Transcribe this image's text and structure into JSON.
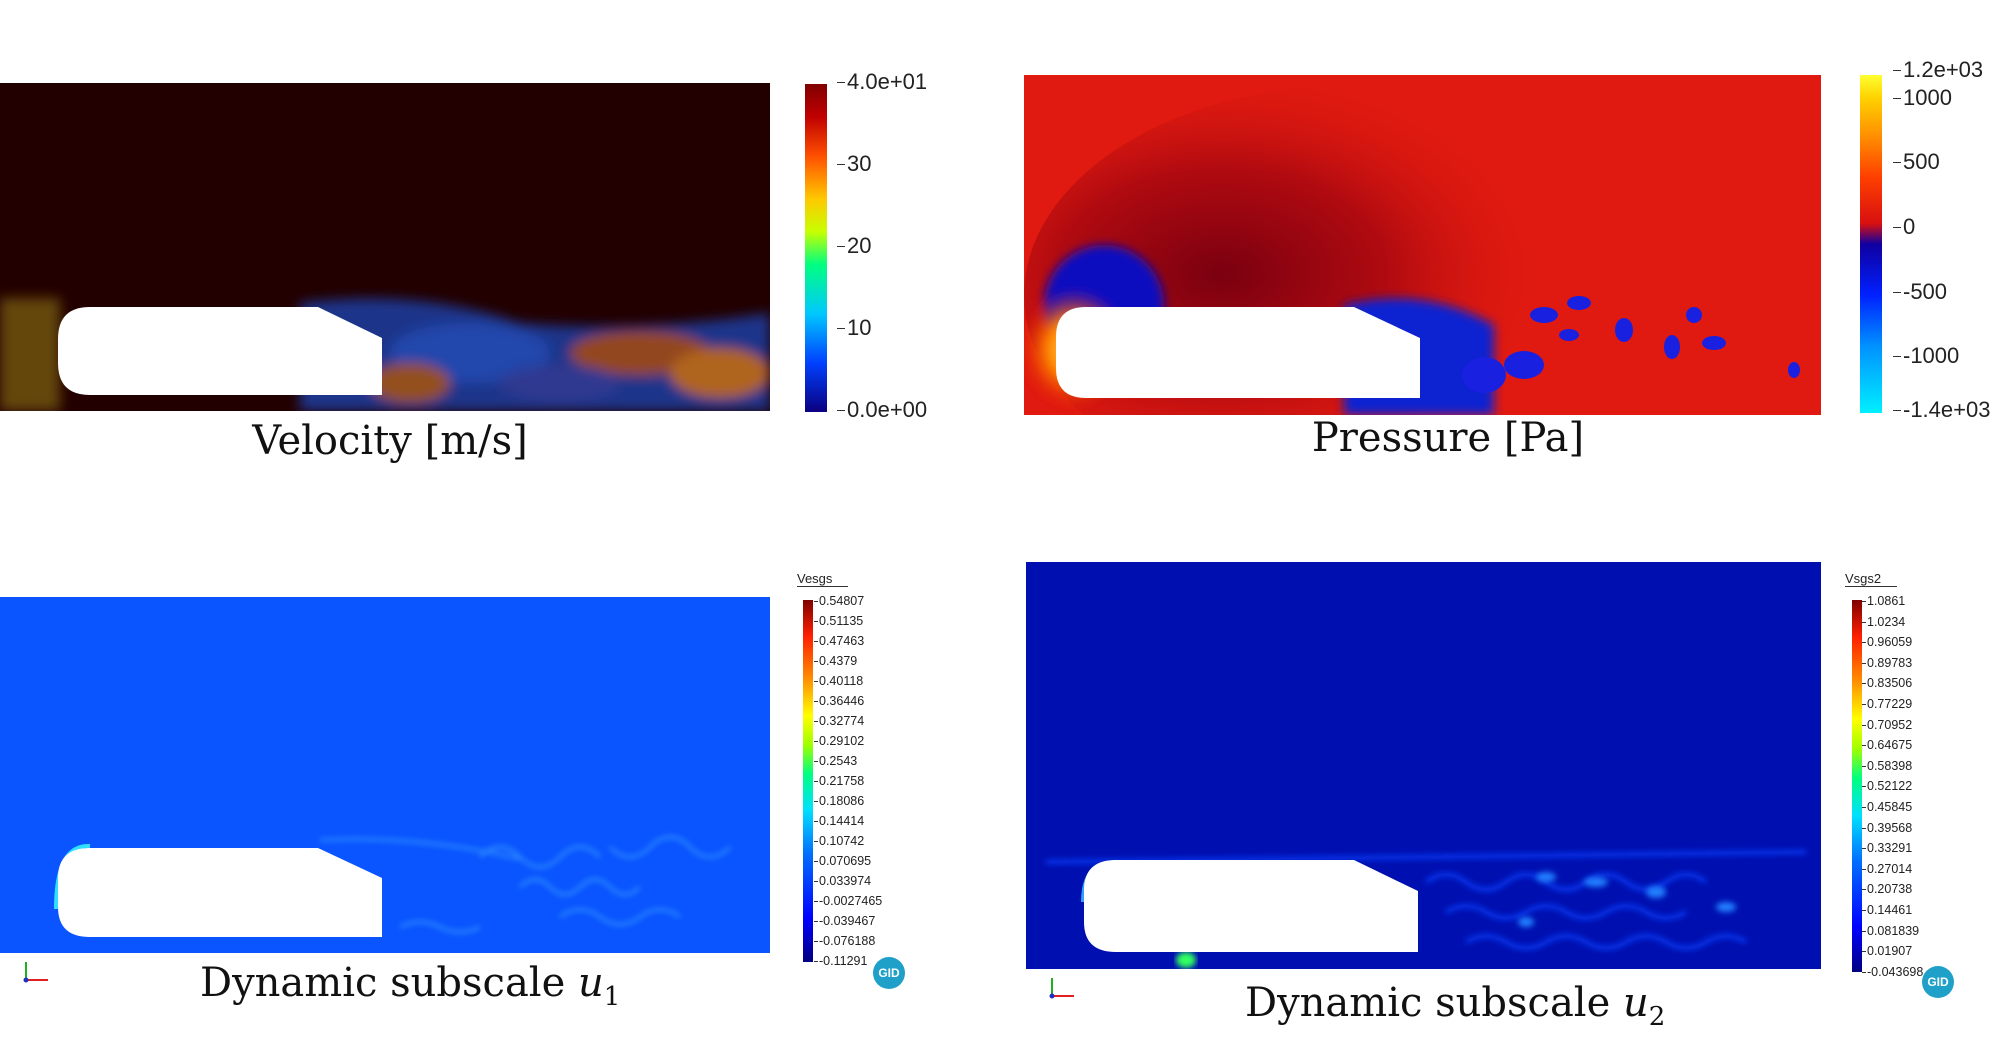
{
  "panels": [
    {
      "id": "velocity",
      "caption": "Velocity [m/s]",
      "colormap": [
        "#0b0080",
        "#0040ff",
        "#00c8ff",
        "#00ff80",
        "#c8ff00",
        "#ffc800",
        "#ff5000",
        "#c00000",
        "#800000"
      ],
      "background": "#230000",
      "ticks": [
        "4.0e+01",
        "30",
        "20",
        "10",
        "0.0e+00"
      ]
    },
    {
      "id": "pressure",
      "caption": "Pressure [Pa]",
      "colormap": [
        "#00f0ff",
        "#0090ff",
        "#0020ff",
        "#1000a0",
        "#d81010",
        "#ff4000",
        "#ff9000",
        "#ffd000",
        "#ffff30"
      ],
      "background": "#e01a10",
      "ticks": [
        "1.2e+03",
        "1000",
        "500",
        "0",
        "-500",
        "-1000",
        "-1.4e+03"
      ]
    },
    {
      "id": "subscale1",
      "caption_prefix": "Dynamic subscale ",
      "caption_var": "u",
      "caption_sub": "1",
      "legend_title": "Vesgs",
      "colormap": [
        "#000080",
        "#0000ff",
        "#0070ff",
        "#00e0ff",
        "#00ff80",
        "#a0ff00",
        "#ffff00",
        "#ff9000",
        "#ff2000",
        "#800000"
      ],
      "background": "#0a55ff",
      "ticks": [
        "0.54807",
        "0.51135",
        "0.47463",
        "0.4379",
        "0.40118",
        "0.36446",
        "0.32774",
        "0.29102",
        "0.2543",
        "0.21758",
        "0.18086",
        "0.14414",
        "0.10742",
        "0.070695",
        "0.033974",
        "-0.0027465",
        "-0.039467",
        "-0.076188",
        "-0.11291"
      ],
      "badge": "GID"
    },
    {
      "id": "subscale2",
      "caption_prefix": "Dynamic subscale ",
      "caption_var": "u",
      "caption_sub": "2",
      "legend_title": "Vsgs2",
      "colormap": [
        "#000080",
        "#0000ff",
        "#0070ff",
        "#00e0ff",
        "#00ff80",
        "#a0ff00",
        "#ffff00",
        "#ff9000",
        "#ff2000",
        "#800000"
      ],
      "background": "#0010b0",
      "ticks": [
        "1.0861",
        "1.0234",
        "0.96059",
        "0.89783",
        "0.83506",
        "0.77229",
        "0.70952",
        "0.64675",
        "0.58398",
        "0.52122",
        "0.45845",
        "0.39568",
        "0.33291",
        "0.27014",
        "0.20738",
        "0.14461",
        "0.081839",
        "0.01907",
        "-0.043698"
      ],
      "badge": "GID"
    }
  ]
}
